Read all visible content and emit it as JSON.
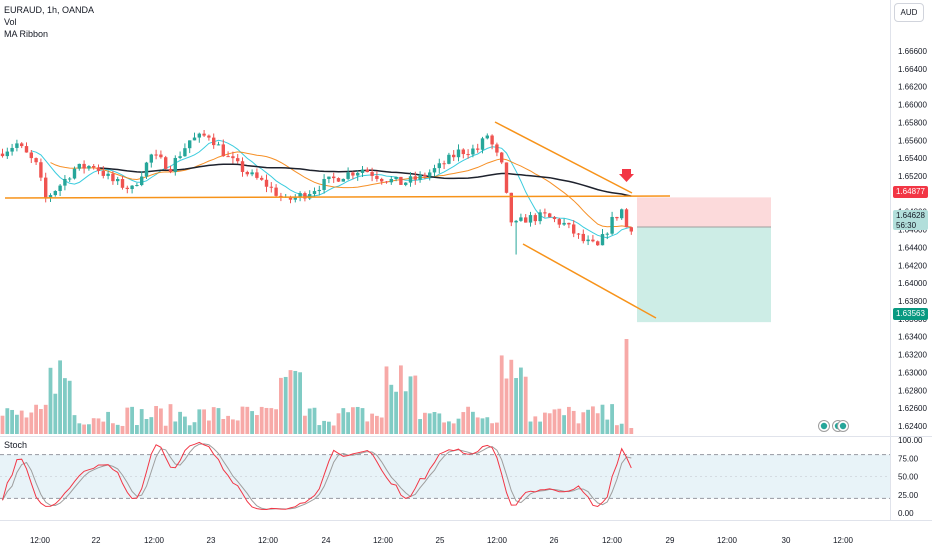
{
  "legend": {
    "symbol": "EURAUD, 1h, OANDA",
    "volume": "Vol",
    "ribbon": "MA Ribbon"
  },
  "currency_button": "AUD",
  "stoch_label": "Stoch",
  "price_tags": {
    "entry": "1.64877",
    "current": "1.64628",
    "countdown": "56:30",
    "target": "1.63563"
  },
  "colors": {
    "up": "#26a69a",
    "down": "#ef5350",
    "vol_up": "#80cbc4",
    "vol_down": "#f7a9a7",
    "ma_long": "#1e222d",
    "ma_mid": "#f57c00",
    "ma_short": "#26c6da",
    "drawing": "#f7931a",
    "stop_zone": "#fbd3d5",
    "target_zone": "#c8ebe3",
    "stoch_k": "#f23645",
    "stoch_d": "#9e9e9e",
    "stoch_band": "#e8f3f8"
  },
  "chart_data": {
    "type": "candlestick",
    "price_axis": {
      "ticks": [
        "1.66600",
        "1.66400",
        "1.66200",
        "1.66000",
        "1.65800",
        "1.65600",
        "1.65400",
        "1.65200",
        "1.65000",
        "1.64800",
        "1.64600",
        "1.64400",
        "1.64200",
        "1.64000",
        "1.63800",
        "1.63600",
        "1.63400",
        "1.63200",
        "1.63000",
        "1.62800",
        "1.62600",
        "1.62400"
      ],
      "range": [
        1.6231,
        1.6679
      ]
    },
    "stoch_axis": {
      "ticks": [
        "100.00",
        "75.00",
        "50.00",
        "25.00",
        "0.00"
      ],
      "range": [
        0,
        100
      ],
      "bands": [
        20,
        80
      ]
    },
    "time_axis": [
      "12:00",
      "22",
      "12:00",
      "23",
      "12:00",
      "24",
      "12:00",
      "25",
      "12:00",
      "26",
      "12:00",
      "29",
      "12:00",
      "30",
      "12:00"
    ],
    "position": {
      "type": "short",
      "entry": 1.64877,
      "stop": 1.6489,
      "target": 1.63563,
      "current": 1.64628
    },
    "note": "Intraday EURAUD hourly candles, volume histogram, MA ribbon, descending channel drawing, short position tool and Stochastic oscillator"
  }
}
